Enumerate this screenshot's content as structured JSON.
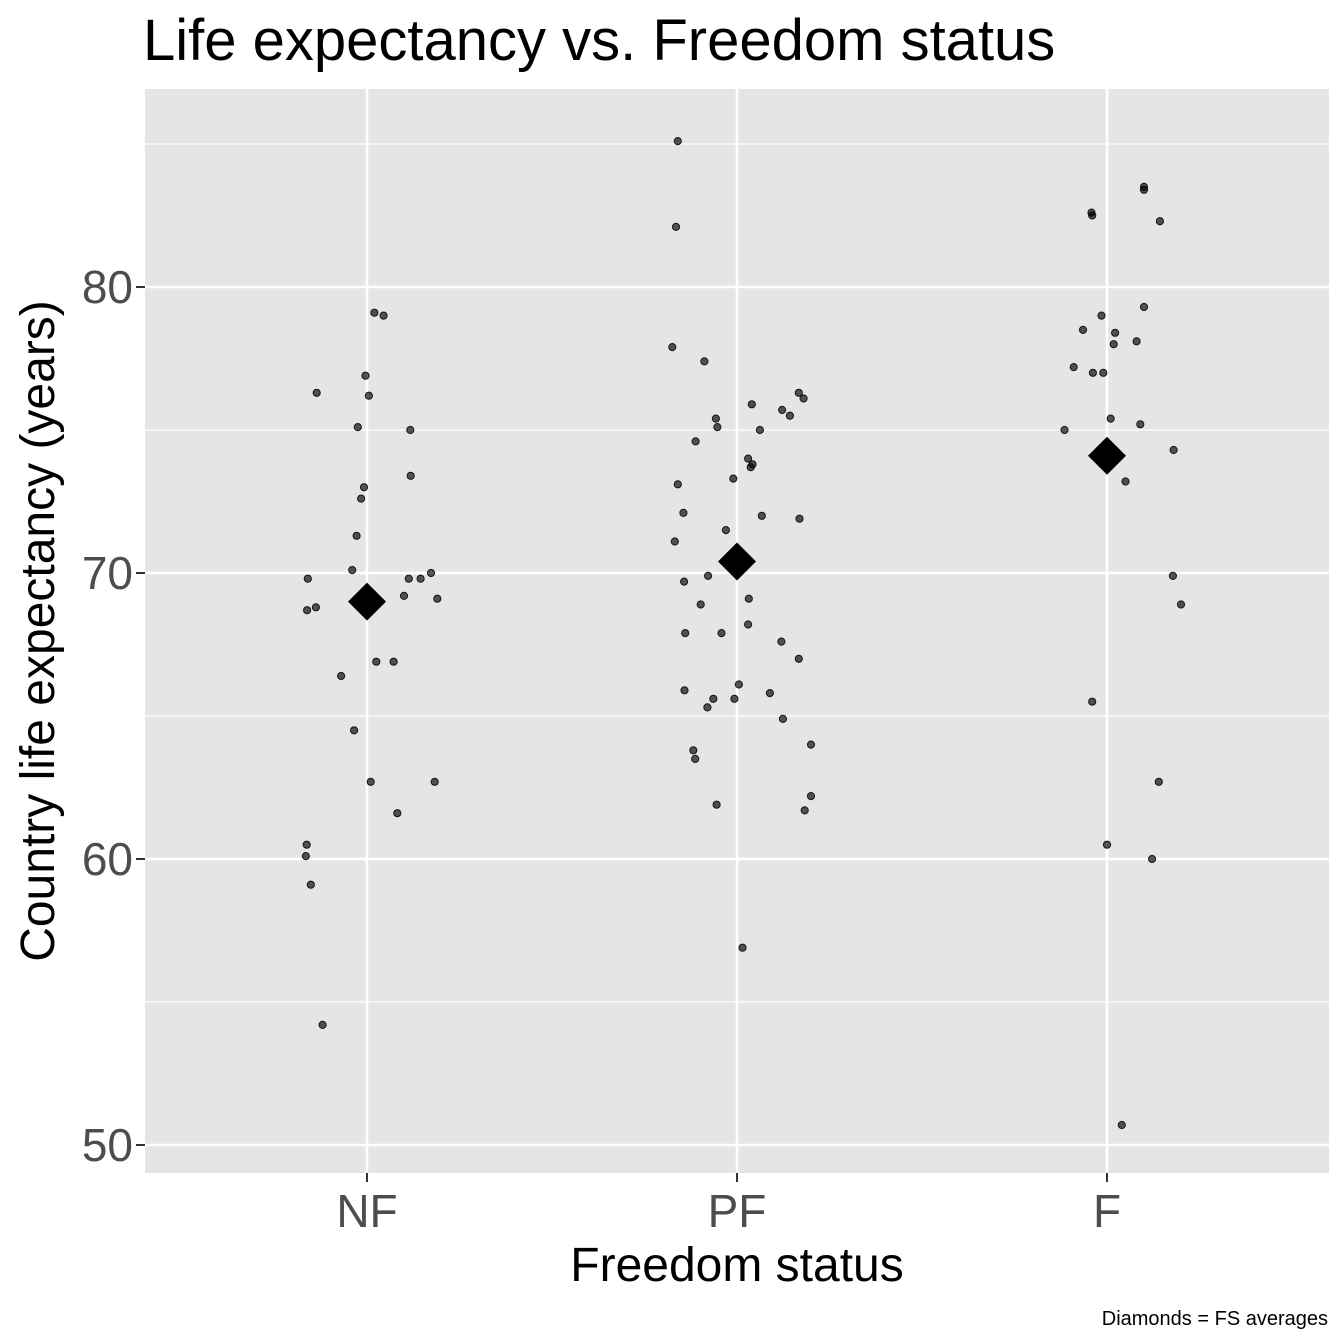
{
  "chart_data": {
    "type": "scatter",
    "title": "Life expectancy vs. Freedom status",
    "xlabel": "Freedom status",
    "ylabel": "Country life expectancy (years)",
    "caption": "Diamonds = FS averages",
    "categories": [
      "NF",
      "PF",
      "F"
    ],
    "ylim": [
      49.0,
      87.0
    ],
    "yticks": [
      50,
      60,
      70,
      80
    ],
    "yticks_minor": [
      55,
      65,
      75,
      85
    ],
    "y_tick_labels": [
      "50",
      "60",
      "70",
      "80"
    ],
    "grid": true,
    "point_color": "#000000",
    "panel_background": "#e5e5e5",
    "grid_color": "#ffffff",
    "points": {
      "NF": [
        {
          "jitter": -0.16,
          "y": 69.8
        },
        {
          "jitter": -0.162,
          "y": 68.7
        },
        {
          "jitter": -0.138,
          "y": 68.8
        },
        {
          "jitter": -0.136,
          "y": 76.3
        },
        {
          "jitter": -0.12,
          "y": 54.2
        },
        {
          "jitter": -0.07,
          "y": 66.4
        },
        {
          "jitter": -0.04,
          "y": 70.1
        },
        {
          "jitter": -0.035,
          "y": 64.5
        },
        {
          "jitter": -0.028,
          "y": 71.3
        },
        {
          "jitter": -0.025,
          "y": 75.1
        },
        {
          "jitter": -0.016,
          "y": 72.6
        },
        {
          "jitter": -0.008,
          "y": 73.0
        },
        {
          "jitter": -0.004,
          "y": 76.9
        },
        {
          "jitter": 0.005,
          "y": 76.2
        },
        {
          "jitter": 0.01,
          "y": 62.7
        },
        {
          "jitter": 0.02,
          "y": 79.1
        },
        {
          "jitter": 0.025,
          "y": 66.9
        },
        {
          "jitter": 0.045,
          "y": 79.0
        },
        {
          "jitter": 0.072,
          "y": 66.9
        },
        {
          "jitter": 0.082,
          "y": 61.6
        },
        {
          "jitter": 0.1,
          "y": 69.2
        },
        {
          "jitter": 0.113,
          "y": 69.8
        },
        {
          "jitter": 0.117,
          "y": 75.0
        },
        {
          "jitter": 0.118,
          "y": 73.4
        },
        {
          "jitter": 0.145,
          "y": 69.8
        },
        {
          "jitter": 0.173,
          "y": 70.0
        },
        {
          "jitter": 0.183,
          "y": 62.7
        },
        {
          "jitter": 0.19,
          "y": 69.1
        },
        {
          "jitter": -0.163,
          "y": 60.5
        },
        {
          "jitter": -0.165,
          "y": 60.1
        },
        {
          "jitter": -0.152,
          "y": 59.1
        }
      ],
      "PF": [
        {
          "jitter": -0.16,
          "y": 85.1
        },
        {
          "jitter": -0.165,
          "y": 82.1
        },
        {
          "jitter": -0.175,
          "y": 77.9
        },
        {
          "jitter": -0.16,
          "y": 73.1
        },
        {
          "jitter": -0.145,
          "y": 72.1
        },
        {
          "jitter": -0.168,
          "y": 71.1
        },
        {
          "jitter": -0.143,
          "y": 69.7
        },
        {
          "jitter": -0.14,
          "y": 67.9
        },
        {
          "jitter": -0.142,
          "y": 65.9
        },
        {
          "jitter": -0.118,
          "y": 63.8
        },
        {
          "jitter": -0.113,
          "y": 63.5
        },
        {
          "jitter": -0.112,
          "y": 74.6
        },
        {
          "jitter": -0.098,
          "y": 68.9
        },
        {
          "jitter": -0.088,
          "y": 77.4
        },
        {
          "jitter": -0.08,
          "y": 65.3
        },
        {
          "jitter": -0.078,
          "y": 69.9
        },
        {
          "jitter": -0.064,
          "y": 65.6
        },
        {
          "jitter": -0.057,
          "y": 75.4
        },
        {
          "jitter": -0.053,
          "y": 75.1
        },
        {
          "jitter": -0.055,
          "y": 61.9
        },
        {
          "jitter": -0.042,
          "y": 67.9
        },
        {
          "jitter": -0.03,
          "y": 71.5
        },
        {
          "jitter": -0.01,
          "y": 73.3
        },
        {
          "jitter": -0.007,
          "y": 65.6
        },
        {
          "jitter": 0.005,
          "y": 66.1
        },
        {
          "jitter": 0.015,
          "y": 56.9
        },
        {
          "jitter": 0.03,
          "y": 68.2
        },
        {
          "jitter": 0.032,
          "y": 69.1
        },
        {
          "jitter": 0.03,
          "y": 74.0
        },
        {
          "jitter": 0.037,
          "y": 73.7
        },
        {
          "jitter": 0.042,
          "y": 73.8
        },
        {
          "jitter": 0.04,
          "y": 75.9
        },
        {
          "jitter": 0.062,
          "y": 75.0
        },
        {
          "jitter": 0.067,
          "y": 72.0
        },
        {
          "jitter": 0.089,
          "y": 65.8
        },
        {
          "jitter": 0.12,
          "y": 67.6
        },
        {
          "jitter": 0.122,
          "y": 75.7
        },
        {
          "jitter": 0.124,
          "y": 64.9
        },
        {
          "jitter": 0.143,
          "y": 75.5
        },
        {
          "jitter": 0.167,
          "y": 76.3
        },
        {
          "jitter": 0.169,
          "y": 71.9
        },
        {
          "jitter": 0.167,
          "y": 67.0
        },
        {
          "jitter": 0.18,
          "y": 76.1
        },
        {
          "jitter": 0.183,
          "y": 61.7
        },
        {
          "jitter": 0.2,
          "y": 64.0
        },
        {
          "jitter": 0.2,
          "y": 62.2
        }
      ],
      "F": [
        {
          "jitter": -0.115,
          "y": 75.0
        },
        {
          "jitter": -0.09,
          "y": 77.2
        },
        {
          "jitter": -0.065,
          "y": 78.5
        },
        {
          "jitter": -0.042,
          "y": 82.6
        },
        {
          "jitter": -0.04,
          "y": 82.5
        },
        {
          "jitter": -0.038,
          "y": 77.0
        },
        {
          "jitter": -0.04,
          "y": 65.5
        },
        {
          "jitter": -0.015,
          "y": 79.0
        },
        {
          "jitter": -0.01,
          "y": 77.0
        },
        {
          "jitter": 0.0,
          "y": 60.5
        },
        {
          "jitter": 0.01,
          "y": 75.4
        },
        {
          "jitter": 0.018,
          "y": 78.0
        },
        {
          "jitter": 0.022,
          "y": 78.4
        },
        {
          "jitter": 0.04,
          "y": 50.7
        },
        {
          "jitter": 0.05,
          "y": 73.2
        },
        {
          "jitter": 0.08,
          "y": 78.1
        },
        {
          "jitter": 0.09,
          "y": 75.2
        },
        {
          "jitter": 0.1,
          "y": 79.3
        },
        {
          "jitter": 0.1,
          "y": 83.4
        },
        {
          "jitter": 0.1,
          "y": 83.5
        },
        {
          "jitter": 0.122,
          "y": 60.0
        },
        {
          "jitter": 0.14,
          "y": 62.7
        },
        {
          "jitter": 0.143,
          "y": 82.3
        },
        {
          "jitter": 0.18,
          "y": 74.3
        },
        {
          "jitter": 0.178,
          "y": 69.9
        },
        {
          "jitter": 0.2,
          "y": 68.9
        }
      ]
    },
    "averages": [
      {
        "category": "NF",
        "y": 69.0
      },
      {
        "category": "PF",
        "y": 70.4
      },
      {
        "category": "F",
        "y": 74.1
      }
    ]
  }
}
